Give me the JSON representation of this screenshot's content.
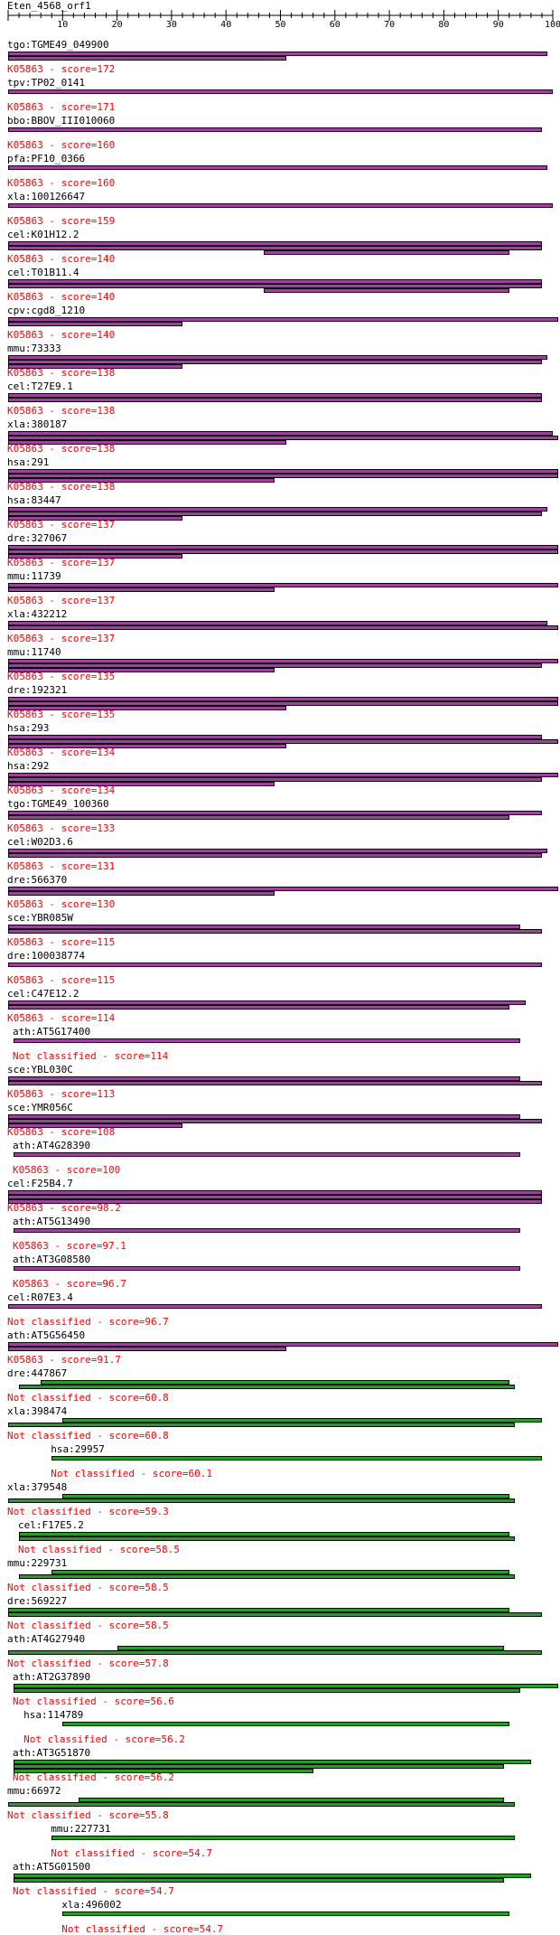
{
  "query": "Eten_4568_orf1",
  "ruler_ticks": [
    "10",
    "20",
    "30",
    "40",
    "50",
    "60",
    "70",
    "80",
    "90",
    "100"
  ],
  "colors": {
    "ko": "#a040a0",
    "unclassified": "#22a022",
    "score_text": "#ff0000"
  },
  "hits": [
    {
      "name": "tgo:TGME49_049900",
      "score": "K05863 - score=172",
      "bars": [
        [
          0,
          99
        ],
        [
          0,
          51
        ]
      ],
      "indent": 0,
      "kind": "ko"
    },
    {
      "name": "tpv:TP02_0141",
      "score": "K05863 - score=171",
      "bars": [
        [
          0,
          100
        ]
      ],
      "indent": 0,
      "kind": "ko"
    },
    {
      "name": "bbo:BBOV_III010060",
      "score": "K05863 - score=160",
      "bars": [
        [
          0,
          98
        ]
      ],
      "indent": 0,
      "kind": "ko"
    },
    {
      "name": "pfa:PF10_0366",
      "score": "K05863 - score=160",
      "bars": [
        [
          0,
          99
        ]
      ],
      "indent": 0,
      "kind": "ko"
    },
    {
      "name": "xla:100126647",
      "score": "K05863 - score=159",
      "bars": [
        [
          0,
          100
        ]
      ],
      "indent": 0,
      "kind": "ko"
    },
    {
      "name": "cel:K01H12.2",
      "score": "K05863 - score=140",
      "bars": [
        [
          0,
          98
        ],
        [
          0,
          98
        ],
        [
          47,
          92
        ]
      ],
      "indent": 0,
      "kind": "ko"
    },
    {
      "name": "cel:T01B11.4",
      "score": "K05863 - score=140",
      "bars": [
        [
          0,
          98
        ],
        [
          0,
          98
        ],
        [
          47,
          92
        ]
      ],
      "indent": 0,
      "kind": "ko"
    },
    {
      "name": "cpv:cgd8_1210",
      "score": "K05863 - score=140",
      "bars": [
        [
          0,
          101
        ],
        [
          0,
          32
        ]
      ],
      "indent": 0,
      "kind": "ko"
    },
    {
      "name": "mmu:73333",
      "score": "K05863 - score=138",
      "bars": [
        [
          0,
          99
        ],
        [
          0,
          98
        ],
        [
          0,
          32
        ]
      ],
      "indent": 0,
      "kind": "ko"
    },
    {
      "name": "cel:T27E9.1",
      "score": "K05863 - score=138",
      "bars": [
        [
          0,
          98
        ],
        [
          0,
          98
        ]
      ],
      "indent": 0,
      "kind": "ko"
    },
    {
      "name": "xla:380187",
      "score": "K05863 - score=138",
      "bars": [
        [
          0,
          100
        ],
        [
          0,
          101
        ],
        [
          0,
          51
        ]
      ],
      "indent": 0,
      "kind": "ko"
    },
    {
      "name": "hsa:291",
      "score": "K05863 - score=138",
      "bars": [
        [
          0,
          101
        ],
        [
          0,
          101
        ],
        [
          0,
          49
        ]
      ],
      "indent": 0,
      "kind": "ko"
    },
    {
      "name": "hsa:83447",
      "score": "K05863 - score=137",
      "bars": [
        [
          0,
          99
        ],
        [
          0,
          98
        ],
        [
          0,
          32
        ]
      ],
      "indent": 0,
      "kind": "ko"
    },
    {
      "name": "dre:327067",
      "score": "K05863 - score=137",
      "bars": [
        [
          0,
          101
        ],
        [
          0,
          101
        ],
        [
          0,
          32
        ]
      ],
      "indent": 0,
      "kind": "ko"
    },
    {
      "name": "mmu:11739",
      "score": "K05863 - score=137",
      "bars": [
        [
          0,
          101
        ],
        [
          0,
          49
        ]
      ],
      "indent": 0,
      "kind": "ko"
    },
    {
      "name": "xla:432212",
      "score": "K05863 - score=137",
      "bars": [
        [
          0,
          99
        ],
        [
          0,
          101
        ]
      ],
      "indent": 0,
      "kind": "ko"
    },
    {
      "name": "mmu:11740",
      "score": "K05863 - score=135",
      "bars": [
        [
          0,
          101
        ],
        [
          0,
          98
        ],
        [
          0,
          49
        ]
      ],
      "indent": 0,
      "kind": "ko"
    },
    {
      "name": "dre:192321",
      "score": "K05863 - score=135",
      "bars": [
        [
          0,
          101
        ],
        [
          0,
          101
        ],
        [
          0,
          51
        ]
      ],
      "indent": 0,
      "kind": "ko"
    },
    {
      "name": "hsa:293",
      "score": "K05863 - score=134",
      "bars": [
        [
          0,
          98
        ],
        [
          0,
          101
        ],
        [
          0,
          51
        ]
      ],
      "indent": 0,
      "kind": "ko"
    },
    {
      "name": "hsa:292",
      "score": "K05863 - score=134",
      "bars": [
        [
          0,
          101
        ],
        [
          0,
          98
        ],
        [
          0,
          49
        ]
      ],
      "indent": 0,
      "kind": "ko"
    },
    {
      "name": "tgo:TGME49_100360",
      "score": "K05863 - score=133",
      "bars": [
        [
          0,
          98
        ],
        [
          0,
          92
        ]
      ],
      "indent": 0,
      "kind": "ko"
    },
    {
      "name": "cel:W02D3.6",
      "score": "K05863 - score=131",
      "bars": [
        [
          0,
          99
        ],
        [
          0,
          98
        ]
      ],
      "indent": 0,
      "kind": "ko"
    },
    {
      "name": "dre:566370",
      "score": "K05863 - score=130",
      "bars": [
        [
          0,
          101
        ],
        [
          0,
          49
        ]
      ],
      "indent": 0,
      "kind": "ko"
    },
    {
      "name": "sce:YBR085W",
      "score": "K05863 - score=115",
      "bars": [
        [
          0,
          94
        ],
        [
          0,
          98
        ]
      ],
      "indent": 0,
      "kind": "ko"
    },
    {
      "name": "dre:100038774",
      "score": "K05863 - score=115",
      "bars": [
        [
          0,
          98
        ]
      ],
      "indent": 0,
      "kind": "ko"
    },
    {
      "name": "cel:C47E12.2",
      "score": "K05863 - score=114",
      "bars": [
        [
          0,
          95
        ],
        [
          0,
          92
        ]
      ],
      "indent": 0,
      "kind": "ko"
    },
    {
      "name": "ath:AT5G17400",
      "score": "Not classified - score=114",
      "bars": [
        [
          1,
          94
        ]
      ],
      "indent": 1,
      "kind": "ko"
    },
    {
      "name": "sce:YBL030C",
      "score": "K05863 - score=113",
      "bars": [
        [
          0,
          94
        ],
        [
          0,
          98
        ]
      ],
      "indent": 0,
      "kind": "ko"
    },
    {
      "name": "sce:YMR056C",
      "score": "K05863 - score=108",
      "bars": [
        [
          0,
          94
        ],
        [
          0,
          98
        ],
        [
          0,
          32
        ]
      ],
      "indent": 0,
      "kind": "ko"
    },
    {
      "name": "ath:AT4G28390",
      "score": "K05863 - score=100",
      "bars": [
        [
          1,
          94
        ]
      ],
      "indent": 1,
      "kind": "ko"
    },
    {
      "name": "cel:F25B4.7",
      "score": "K05863 - score=98.2",
      "bars": [
        [
          0,
          98
        ],
        [
          0,
          98
        ],
        [
          0,
          98
        ]
      ],
      "indent": 0,
      "kind": "ko"
    },
    {
      "name": "ath:AT5G13490",
      "score": "K05863 - score=97.1",
      "bars": [
        [
          1,
          94
        ]
      ],
      "indent": 1,
      "kind": "ko"
    },
    {
      "name": "ath:AT3G08580",
      "score": "K05863 - score=96.7",
      "bars": [
        [
          1,
          94
        ]
      ],
      "indent": 1,
      "kind": "ko"
    },
    {
      "name": "cel:R07E3.4",
      "score": "Not classified - score=96.7",
      "bars": [
        [
          0,
          98
        ]
      ],
      "indent": 0,
      "kind": "ko"
    },
    {
      "name": "ath:AT5G56450",
      "score": "K05863 - score=91.7",
      "bars": [
        [
          0,
          101
        ],
        [
          0,
          51
        ]
      ],
      "indent": 0,
      "kind": "ko"
    },
    {
      "name": "dre:447867",
      "score": "Not classified - score=60.8",
      "bars": [
        [
          6,
          92
        ],
        [
          2,
          93
        ]
      ],
      "indent": 0,
      "kind": "unc"
    },
    {
      "name": "xla:398474",
      "score": "Not classified - score=60.8",
      "bars": [
        [
          10,
          98
        ],
        [
          0,
          93
        ]
      ],
      "indent": 0,
      "kind": "unc"
    },
    {
      "name": "hsa:29957",
      "score": "Not classified - score=60.1",
      "bars": [
        [
          8,
          98
        ]
      ],
      "indent": 8,
      "kind": "unc"
    },
    {
      "name": "xla:379548",
      "score": "Not classified - score=59.3",
      "bars": [
        [
          10,
          92
        ],
        [
          0,
          93
        ]
      ],
      "indent": 0,
      "kind": "unc"
    },
    {
      "name": "cel:F17E5.2",
      "score": "Not classified - score=58.5",
      "bars": [
        [
          2,
          92
        ],
        [
          2,
          93
        ]
      ],
      "indent": 2,
      "kind": "unc"
    },
    {
      "name": "mmu:229731",
      "score": "Not classified - score=58.5",
      "bars": [
        [
          8,
          92
        ],
        [
          2,
          93
        ]
      ],
      "indent": 0,
      "kind": "unc"
    },
    {
      "name": "dre:569227",
      "score": "Not classified - score=58.5",
      "bars": [
        [
          0,
          92
        ],
        [
          0,
          98
        ]
      ],
      "indent": 0,
      "kind": "unc"
    },
    {
      "name": "ath:AT4G27940",
      "score": "Not classified - score=57.8",
      "bars": [
        [
          20,
          91
        ],
        [
          0,
          98
        ]
      ],
      "indent": 0,
      "kind": "unc"
    },
    {
      "name": "ath:AT2G37890",
      "score": "Not classified - score=56.6",
      "bars": [
        [
          1,
          101
        ],
        [
          1,
          94
        ]
      ],
      "indent": 1,
      "kind": "unc"
    },
    {
      "name": "hsa:114789",
      "score": "Not classified - score=56.2",
      "bars": [
        [
          10,
          92
        ]
      ],
      "indent": 3,
      "kind": "unc"
    },
    {
      "name": "ath:AT3G51870",
      "score": "Not classified - score=56.2",
      "bars": [
        [
          1,
          96
        ],
        [
          1,
          91
        ],
        [
          1,
          56
        ]
      ],
      "indent": 1,
      "kind": "unc"
    },
    {
      "name": "mmu:66972",
      "score": "Not classified - score=55.8",
      "bars": [
        [
          13,
          91
        ],
        [
          0,
          93
        ]
      ],
      "indent": 0,
      "kind": "unc"
    },
    {
      "name": "mmu:227731",
      "score": "Not classified - score=54.7",
      "bars": [
        [
          8,
          93
        ]
      ],
      "indent": 8,
      "kind": "unc"
    },
    {
      "name": "ath:AT5G01500",
      "score": "Not classified - score=54.7",
      "bars": [
        [
          1,
          96
        ],
        [
          1,
          91
        ]
      ],
      "indent": 1,
      "kind": "unc"
    },
    {
      "name": "xla:496002",
      "score": "Not classified - score=54.7",
      "bars": [
        [
          10,
          92
        ]
      ],
      "indent": 10,
      "kind": "unc"
    }
  ]
}
